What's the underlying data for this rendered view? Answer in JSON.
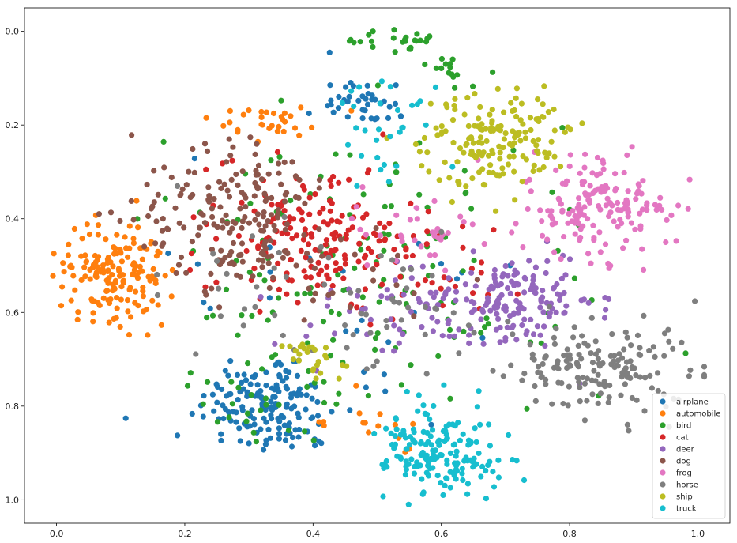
{
  "chart_data": {
    "type": "scatter",
    "title": "",
    "xlabel": "",
    "ylabel": "",
    "xlim": [
      -0.05,
      1.05
    ],
    "ylim": [
      1.05,
      -0.05
    ],
    "y_inverted": true,
    "grid": false,
    "legend_position": "bottom-right",
    "x_ticks": [
      "0.0",
      "0.2",
      "0.4",
      "0.6",
      "0.8",
      "1.0"
    ],
    "y_ticks": [
      "0.0",
      "0.2",
      "0.4",
      "0.6",
      "0.8",
      "1.0"
    ],
    "series": [
      {
        "name": "airplane",
        "color": "#1f77b4",
        "clusters": [
          {
            "cx": 0.33,
            "cy": 0.8,
            "sx": 0.055,
            "sy": 0.055,
            "n": 160
          },
          {
            "cx": 0.48,
            "cy": 0.15,
            "sx": 0.035,
            "sy": 0.025,
            "n": 40
          },
          {
            "cx": 0.45,
            "cy": 0.55,
            "sx": 0.15,
            "sy": 0.12,
            "n": 25
          }
        ]
      },
      {
        "name": "automobile",
        "color": "#ff7f0e",
        "clusters": [
          {
            "cx": 0.09,
            "cy": 0.52,
            "sx": 0.038,
            "sy": 0.055,
            "n": 160
          },
          {
            "cx": 0.32,
            "cy": 0.19,
            "sx": 0.05,
            "sy": 0.018,
            "n": 30
          },
          {
            "cx": 0.5,
            "cy": 0.85,
            "sx": 0.04,
            "sy": 0.04,
            "n": 15
          }
        ]
      },
      {
        "name": "bird",
        "color": "#2ca02c",
        "clusters": [
          {
            "cx": 0.5,
            "cy": 0.5,
            "sx": 0.16,
            "sy": 0.14,
            "n": 140
          },
          {
            "cx": 0.52,
            "cy": 0.02,
            "sx": 0.04,
            "sy": 0.012,
            "n": 25
          },
          {
            "cx": 0.62,
            "cy": 0.09,
            "sx": 0.02,
            "sy": 0.02,
            "n": 15
          },
          {
            "cx": 0.33,
            "cy": 0.8,
            "sx": 0.05,
            "sy": 0.05,
            "n": 25
          }
        ]
      },
      {
        "name": "cat",
        "color": "#d62728",
        "clusters": [
          {
            "cx": 0.4,
            "cy": 0.43,
            "sx": 0.08,
            "sy": 0.07,
            "n": 170
          },
          {
            "cx": 0.58,
            "cy": 0.52,
            "sx": 0.08,
            "sy": 0.06,
            "n": 30
          }
        ]
      },
      {
        "name": "deer",
        "color": "#9467bd",
        "clusters": [
          {
            "cx": 0.7,
            "cy": 0.58,
            "sx": 0.07,
            "sy": 0.05,
            "n": 170
          },
          {
            "cx": 0.5,
            "cy": 0.6,
            "sx": 0.08,
            "sy": 0.06,
            "n": 30
          }
        ]
      },
      {
        "name": "dog",
        "color": "#8c564b",
        "clusters": [
          {
            "cx": 0.28,
            "cy": 0.4,
            "sx": 0.08,
            "sy": 0.075,
            "n": 180
          },
          {
            "cx": 0.4,
            "cy": 0.5,
            "sx": 0.08,
            "sy": 0.07,
            "n": 30
          }
        ]
      },
      {
        "name": "frog",
        "color": "#e377c2",
        "clusters": [
          {
            "cx": 0.85,
            "cy": 0.38,
            "sx": 0.06,
            "sy": 0.05,
            "n": 160
          },
          {
            "cx": 0.56,
            "cy": 0.42,
            "sx": 0.06,
            "sy": 0.05,
            "n": 35
          }
        ]
      },
      {
        "name": "horse",
        "color": "#7f7f7f",
        "clusters": [
          {
            "cx": 0.85,
            "cy": 0.72,
            "sx": 0.07,
            "sy": 0.05,
            "n": 160
          },
          {
            "cx": 0.38,
            "cy": 0.55,
            "sx": 0.12,
            "sy": 0.1,
            "n": 40
          },
          {
            "cx": 0.55,
            "cy": 0.62,
            "sx": 0.06,
            "sy": 0.04,
            "n": 20
          }
        ]
      },
      {
        "name": "ship",
        "color": "#bcbd22",
        "clusters": [
          {
            "cx": 0.68,
            "cy": 0.24,
            "sx": 0.055,
            "sy": 0.05,
            "n": 160
          },
          {
            "cx": 0.38,
            "cy": 0.68,
            "sx": 0.025,
            "sy": 0.015,
            "n": 15
          },
          {
            "cx": 0.42,
            "cy": 0.72,
            "sx": 0.02,
            "sy": 0.02,
            "n": 10
          }
        ]
      },
      {
        "name": "truck",
        "color": "#17becf",
        "clusters": [
          {
            "cx": 0.6,
            "cy": 0.9,
            "sx": 0.045,
            "sy": 0.05,
            "n": 170
          },
          {
            "cx": 0.52,
            "cy": 0.22,
            "sx": 0.04,
            "sy": 0.06,
            "n": 30
          }
        ]
      }
    ]
  }
}
